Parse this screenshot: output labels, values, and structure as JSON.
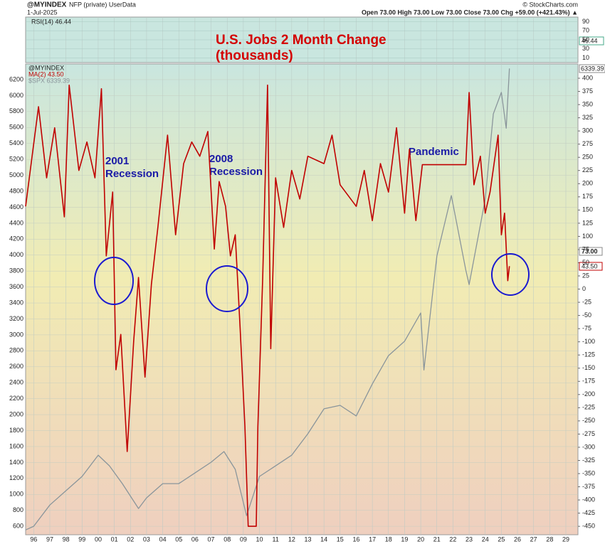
{
  "header": {
    "symbol": "@MYINDEX",
    "desc": "NFP (private) UserData",
    "date": "1-Jul-2025",
    "quote": "Open 73.00  High 73.00  Low 73.00  Close 73.00  Chg +59.00 (+421.43%) ▲",
    "credit": "© StockCharts.com"
  },
  "rsi": {
    "label": "RSI(14) 46.44",
    "tag": "46.44",
    "ylim": [
      0,
      100
    ],
    "yticks": [
      90,
      70,
      50,
      30,
      10
    ]
  },
  "chart_data": {
    "type": "line",
    "title": "U.S. Jobs 2 Month Change",
    "subtitle": "(thousands)",
    "legend_title": "@MYINDEX",
    "annotations": [
      "2001",
      "Recession",
      "2008",
      "Recession",
      "Pandemic"
    ],
    "tags": [
      "6339.39",
      "73.00",
      "43.50"
    ],
    "xlim": [
      1995.5,
      2029.75
    ],
    "xticks": [
      {
        "value": 1996,
        "label": "96"
      },
      {
        "value": 1997,
        "label": "97"
      },
      {
        "value": 1998,
        "label": "98"
      },
      {
        "value": 1999,
        "label": "99"
      },
      {
        "value": 2000,
        "label": "00"
      },
      {
        "value": 2001,
        "label": "01"
      },
      {
        "value": 2002,
        "label": "02"
      },
      {
        "value": 2003,
        "label": "03"
      },
      {
        "value": 2004,
        "label": "04"
      },
      {
        "value": 2005,
        "label": "05"
      },
      {
        "value": 2006,
        "label": "06"
      },
      {
        "value": 2007,
        "label": "07"
      },
      {
        "value": 2008,
        "label": "08"
      },
      {
        "value": 2009,
        "label": "09"
      },
      {
        "value": 2010,
        "label": "10"
      },
      {
        "value": 2011,
        "label": "11"
      },
      {
        "value": 2012,
        "label": "12"
      },
      {
        "value": 2013,
        "label": "13"
      },
      {
        "value": 2014,
        "label": "14"
      },
      {
        "value": 2015,
        "label": "15"
      },
      {
        "value": 2016,
        "label": "16"
      },
      {
        "value": 2017,
        "label": "17"
      },
      {
        "value": 2018,
        "label": "18"
      },
      {
        "value": 2019,
        "label": "19"
      },
      {
        "value": 2020,
        "label": "20"
      },
      {
        "value": 2021,
        "label": "21"
      },
      {
        "value": 2022,
        "label": "22"
      },
      {
        "value": 2023,
        "label": "23"
      },
      {
        "value": 2024,
        "label": "24"
      },
      {
        "value": 2025,
        "label": "25"
      },
      {
        "value": 2026,
        "label": "26"
      },
      {
        "value": 2027,
        "label": "27"
      },
      {
        "value": 2028,
        "label": "28"
      },
      {
        "value": 2029,
        "label": "29"
      }
    ],
    "ylim": [
      494,
      6396
    ],
    "yticks": [
      600,
      800,
      1000,
      1200,
      1400,
      1600,
      1800,
      2000,
      2200,
      2400,
      2600,
      2800,
      3000,
      3200,
      3400,
      3600,
      3800,
      4000,
      4200,
      4400,
      4600,
      4800,
      5000,
      5200,
      5400,
      5600,
      5800,
      6000,
      6200
    ],
    "y2lim": [
      -466,
      427
    ],
    "y2ticks": [
      400,
      375,
      350,
      325,
      300,
      275,
      250,
      225,
      200,
      175,
      150,
      125,
      100,
      75,
      50,
      25,
      0,
      -25,
      -50,
      -75,
      -100,
      -125,
      -150,
      -175,
      -200,
      -225,
      -250,
      -275,
      -300,
      -325,
      -350,
      -375,
      -400,
      -425,
      -450
    ],
    "grid": true,
    "series": [
      {
        "name": "MA(2) 43.50",
        "color": "#c00000",
        "axis": "y2",
        "x": [
          1995.5,
          1996.3,
          1996.8,
          1997.3,
          1997.9,
          1998.2,
          1998.8,
          1999.3,
          1999.8,
          2000.2,
          2000.5,
          2000.9,
          2001.1,
          2001.4,
          2001.8,
          2002.2,
          2002.5,
          2002.9,
          2003.3,
          2003.7,
          2004.3,
          2004.8,
          2005.3,
          2005.8,
          2006.3,
          2006.8,
          2007.2,
          2007.5,
          2007.9,
          2008.2,
          2008.5,
          2008.8,
          2009.1,
          2009.3,
          2009.8,
          2009.9,
          2010.2,
          2010.5,
          2010.7,
          2011.0,
          2011.5,
          2012.0,
          2012.5,
          2013.0,
          2014.0,
          2014.5,
          2015.0,
          2016.0,
          2016.5,
          2017.0,
          2017.5,
          2018.0,
          2018.5,
          2019.0,
          2019.3,
          2019.7,
          2020.1,
          2022.8,
          2023.0,
          2023.3,
          2023.7,
          2024.0,
          2024.3,
          2024.8,
          2025.0,
          2025.2,
          2025.4,
          2025.5
        ],
        "values": [
          157,
          346,
          211,
          306,
          137,
          387,
          225,
          279,
          211,
          380,
          63,
          184,
          -153,
          -86,
          -308,
          -99,
          22,
          -167,
          9,
          117,
          292,
          103,
          238,
          279,
          252,
          299,
          76,
          204,
          157,
          63,
          103,
          -72,
          -261,
          -450,
          -450,
          -261,
          22,
          387,
          -113,
          211,
          117,
          225,
          171,
          252,
          238,
          292,
          198,
          157,
          225,
          130,
          238,
          184,
          306,
          144,
          265,
          130,
          236,
          236,
          373,
          198,
          252,
          144,
          184,
          292,
          103,
          144,
          16,
          43.5
        ]
      },
      {
        "name": "$SPX 6339.39",
        "color": "#8a959b",
        "x": [
          1995.5,
          1996,
          1997,
          1998,
          1999,
          2000,
          2000.7,
          2001.5,
          2002.5,
          2003,
          2004,
          2005,
          2006,
          2007,
          2007.8,
          2008.5,
          2009.2,
          2010,
          2011,
          2012,
          2013,
          2014,
          2015,
          2016,
          2017,
          2018,
          2019,
          2020,
          2020.2,
          2021,
          2021.9,
          2022.8,
          2023,
          2024,
          2024.5,
          2025,
          2025.3,
          2025.5
        ],
        "values": [
          555,
          600,
          867,
          1046,
          1225,
          1492,
          1358,
          1135,
          823,
          957,
          1135,
          1135,
          1269,
          1403,
          1537,
          1314,
          734,
          1225,
          1358,
          1492,
          1760,
          2073,
          2117,
          1984,
          2385,
          2740,
          2920,
          3275,
          2560,
          3990,
          4747,
          3810,
          3630,
          4700,
          5770,
          6040,
          5590,
          6339.39
        ]
      }
    ]
  }
}
